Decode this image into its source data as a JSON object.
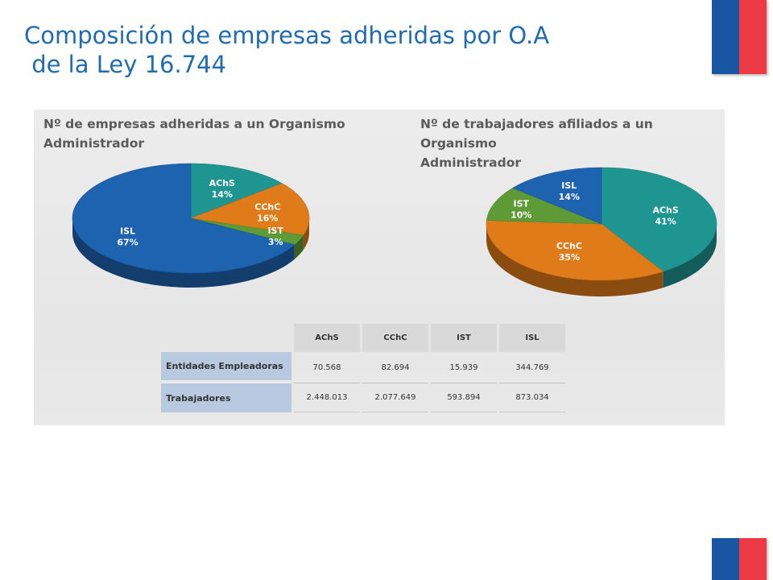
{
  "slide": {
    "title_line1": "Composición de empresas adheridas por O.A",
    "title_line2": " de la Ley 16.744"
  },
  "colors": {
    "AChS": "#1f9592",
    "CChC": "#e07b1a",
    "IST": "#5e9a35",
    "ISL": "#1d63b0",
    "title": "#1f6cb3",
    "flag_blue": "#1a55a3",
    "flag_red": "#ee3a45"
  },
  "chart_data": [
    {
      "type": "pie",
      "title": "Nº de empresas adheridas a un Organismo\nAdministrador",
      "slices": [
        {
          "name": "AChS",
          "value": 14,
          "label": "14%"
        },
        {
          "name": "CChC",
          "value": 16,
          "label": "16%"
        },
        {
          "name": "IST",
          "value": 3,
          "label": "3%"
        },
        {
          "name": "ISL",
          "value": 67,
          "label": "67%"
        }
      ]
    },
    {
      "type": "pie",
      "title": "Nº de trabajadores afiliados a un Organismo\nAdministrador",
      "slices": [
        {
          "name": "AChS",
          "value": 41,
          "label": "41%"
        },
        {
          "name": "CChC",
          "value": 35,
          "label": "35%"
        },
        {
          "name": "IST",
          "value": 10,
          "label": "10%"
        },
        {
          "name": "ISL",
          "value": 14,
          "label": "14%"
        }
      ]
    },
    {
      "type": "table",
      "columns": [
        "AChS",
        "CChC",
        "IST",
        "ISL"
      ],
      "rows": [
        {
          "label": "Entidades Empleadoras",
          "values": [
            "70.568",
            "82.694",
            "15.939",
            "344.769"
          ]
        },
        {
          "label": "Trabajadores",
          "values": [
            "2.448.013",
            "2.077.649",
            "593.894",
            "873.034"
          ]
        }
      ]
    }
  ]
}
